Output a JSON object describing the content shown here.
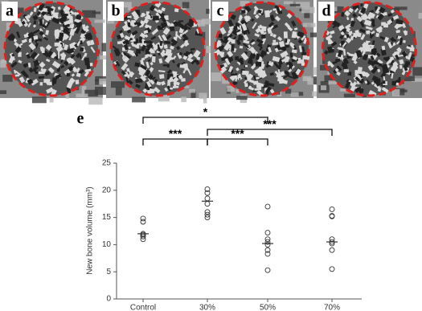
{
  "image_panels": [
    {
      "label": "a"
    },
    {
      "label": "b"
    },
    {
      "label": "c"
    },
    {
      "label": "d"
    }
  ],
  "chart_data": {
    "type": "dotplot",
    "panel_label": "e",
    "y_label": "New bone volume (mm³)",
    "categories": [
      "Control",
      "30%",
      "50%",
      "70%"
    ],
    "points": [
      [
        14.8,
        14.2,
        12.0,
        11.8,
        11.5,
        11.0
      ],
      [
        20.2,
        19.5,
        18.5,
        17.5,
        16.0,
        15.5,
        15.0
      ],
      [
        17.0,
        12.2,
        11.0,
        10.5,
        10.0,
        9.0,
        8.3,
        5.3
      ],
      [
        16.5,
        15.3,
        15.2,
        11.0,
        10.5,
        10.2,
        9.0,
        5.5
      ]
    ],
    "means": [
      12.0,
      18.0,
      10.2,
      10.5
    ],
    "ylim": [
      0,
      25
    ],
    "yticks": [
      0,
      5,
      10,
      15,
      20,
      25
    ],
    "comparisons": [
      {
        "between": [
          "Control",
          "50%"
        ],
        "label": "*"
      },
      {
        "between": [
          "Control",
          "30%"
        ],
        "label": "***"
      },
      {
        "between": [
          "30%",
          "70%"
        ],
        "label": "***"
      },
      {
        "between": [
          "30%",
          "50%"
        ],
        "label": "***"
      }
    ]
  }
}
